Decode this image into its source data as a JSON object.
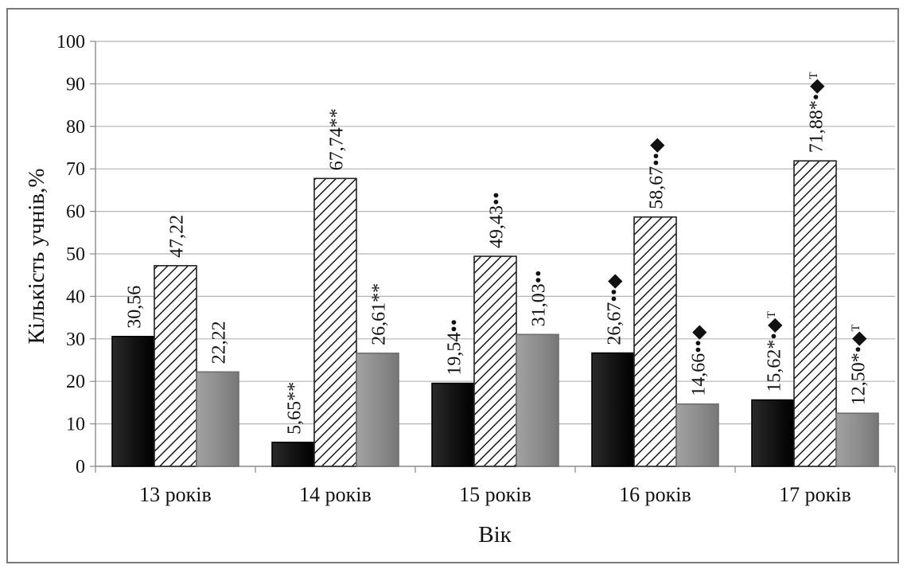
{
  "chart_data": {
    "type": "bar",
    "xlabel": "Вік",
    "ylabel": "Кількість учнів,%",
    "ylim": [
      0,
      100
    ],
    "yticks": [
      0,
      10,
      20,
      30,
      40,
      50,
      60,
      70,
      80,
      90,
      100
    ],
    "grid": true,
    "categories": [
      "13 років",
      "14 років",
      "15 років",
      "16 років",
      "17 років"
    ],
    "series": [
      {
        "color": "#151515",
        "pattern": "solid",
        "values": [
          30.56,
          5.65,
          19.54,
          26.67,
          15.62
        ],
        "labels": [
          "30,56",
          "5,65**",
          "19,54••",
          "26,67••◆",
          "15,62*•◆ᵀ"
        ]
      },
      {
        "color": "#ffffff",
        "pattern": "diagonal-hatch",
        "values": [
          47.22,
          67.74,
          49.43,
          58.67,
          71.88
        ],
        "labels": [
          "47,22",
          "67,74**",
          "49,43••",
          "58,67••◆",
          "71,88*•◆ᵀ"
        ]
      },
      {
        "color": "#8e8e8e",
        "pattern": "solid",
        "values": [
          22.22,
          26.61,
          31.03,
          14.66,
          12.5
        ],
        "labels": [
          "22,22",
          "26,61**",
          "31,03••",
          "14,66••◆",
          "12,50*•◆ᵀ"
        ]
      }
    ]
  }
}
